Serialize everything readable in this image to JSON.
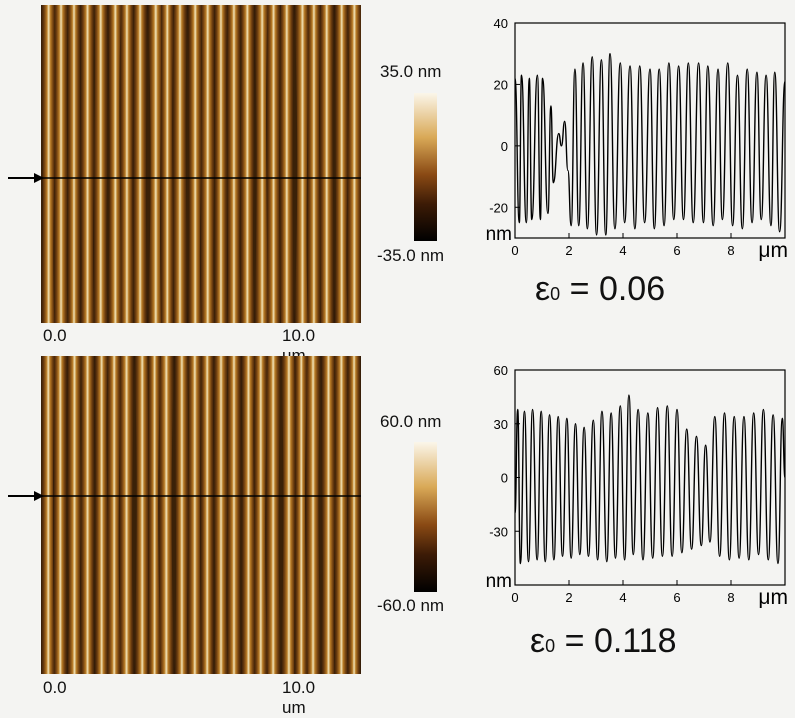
{
  "panels": [
    {
      "image": {
        "x_start": "0.0",
        "x_end": "10.0 um"
      },
      "colorbar": {
        "max_label": "35.0 nm",
        "min_label": "-35.0 nm"
      },
      "epsilon": {
        "symbol": "ε",
        "subscript": "0",
        "equals": "= 0.06"
      },
      "chart_data": {
        "type": "line",
        "x_unit": "μm",
        "y_unit": "nm",
        "xlim": [
          0,
          10
        ],
        "ylim": [
          -30,
          40
        ],
        "x_ticks": [
          0,
          2,
          4,
          6,
          8
        ],
        "y_ticks": [
          40,
          20,
          0,
          -20
        ],
        "series": [
          {
            "x": [
              0.0,
              0.16,
              0.24,
              0.42,
              0.53,
              0.62,
              0.83,
              0.94,
              1.02,
              1.22,
              1.33,
              1.42,
              1.62,
              1.72,
              1.84,
              1.96,
              2.08,
              2.22,
              2.36,
              2.52,
              2.68,
              2.86,
              3.02,
              3.2,
              3.36,
              3.52,
              3.7,
              3.9,
              4.06,
              4.26,
              4.44,
              4.62,
              4.8,
              5.0,
              5.16,
              5.34,
              5.52,
              5.7,
              5.88,
              6.06,
              6.24,
              6.42,
              6.6,
              6.8,
              6.98,
              7.14,
              7.34,
              7.52,
              7.68,
              7.88,
              8.06,
              8.24,
              8.42,
              8.6,
              8.78,
              8.96,
              9.12,
              9.3,
              9.48,
              9.62,
              9.8,
              10.0
            ],
            "y": [
              22,
              -25,
              23,
              -25,
              22,
              -24,
              23,
              -24,
              22,
              -22,
              13,
              -12,
              4,
              0,
              8,
              -8,
              -26,
              25,
              -26,
              27,
              -27,
              29,
              -29,
              28,
              -29,
              30,
              -27,
              27,
              -25,
              26,
              -27,
              26,
              -25,
              25,
              -27,
              25,
              -26,
              27,
              -24,
              26,
              -24,
              27,
              -25,
              27,
              -25,
              26,
              -26,
              25,
              -24,
              27,
              -26,
              23,
              -27,
              25,
              -25,
              24,
              -24,
              23,
              -26,
              24,
              -28,
              21
            ]
          }
        ]
      }
    },
    {
      "image": {
        "x_start": "0.0",
        "x_end": "10.0 um"
      },
      "colorbar": {
        "max_label": "60.0 nm",
        "min_label": "-60.0 nm"
      },
      "epsilon": {
        "symbol": "ε",
        "subscript": "0",
        "equals": "= 0.118"
      },
      "chart_data": {
        "type": "line",
        "x_unit": "μm",
        "y_unit": "nm",
        "xlim": [
          0,
          10
        ],
        "ylim": [
          -60,
          60
        ],
        "x_ticks": [
          0,
          2,
          4,
          6,
          8
        ],
        "y_ticks": [
          60,
          30,
          0,
          -30
        ],
        "series": [
          {
            "x": [
              0.0,
              0.1,
              0.2,
              0.35,
              0.5,
              0.65,
              0.82,
              0.97,
              1.12,
              1.28,
              1.44,
              1.6,
              1.76,
              1.92,
              2.08,
              2.24,
              2.4,
              2.56,
              2.72,
              2.9,
              3.06,
              3.22,
              3.4,
              3.56,
              3.72,
              3.9,
              4.06,
              4.22,
              4.38,
              4.56,
              4.74,
              4.92,
              5.1,
              5.28,
              5.46,
              5.64,
              5.82,
              6.0,
              6.18,
              6.36,
              6.54,
              6.72,
              6.9,
              7.06,
              7.22,
              7.4,
              7.58,
              7.76,
              7.94,
              8.12,
              8.3,
              8.48,
              8.66,
              8.84,
              9.02,
              9.2,
              9.38,
              9.56,
              9.74,
              9.9,
              10.0
            ],
            "y": [
              -20,
              38,
              -48,
              37,
              -47,
              38,
              -46,
              37,
              -47,
              35,
              -46,
              34,
              -44,
              33,
              -45,
              30,
              -43,
              28,
              -44,
              32,
              -46,
              37,
              -47,
              36,
              -45,
              40,
              -46,
              46,
              -43,
              38,
              -46,
              36,
              -45,
              39,
              -44,
              40,
              -44,
              38,
              -42,
              27,
              -40,
              23,
              -38,
              18,
              -36,
              34,
              -44,
              36,
              -46,
              34,
              -45,
              34,
              -46,
              36,
              -43,
              38,
              -46,
              35,
              -48,
              33,
              0
            ]
          }
        ]
      }
    }
  ],
  "colors": {
    "background": "#f4f4f2",
    "line": "#000000"
  }
}
